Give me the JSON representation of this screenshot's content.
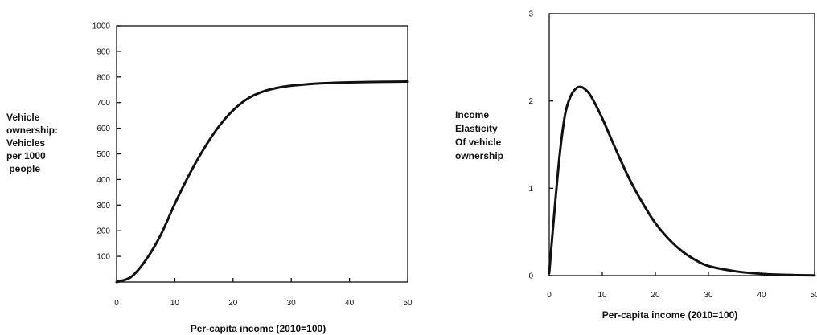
{
  "chart_data": [
    {
      "type": "line",
      "title": "",
      "xlabel": "Per-capita income (2010=100)",
      "ylabel_lines": [
        "Vehicle",
        "ownership:",
        "Vehicles",
        "per 1000",
        " people"
      ],
      "xlim": [
        0,
        50
      ],
      "ylim": [
        0,
        1000
      ],
      "x_ticks": [
        "0",
        "10",
        "20",
        "30",
        "40",
        "50"
      ],
      "y_ticks": [
        "100",
        "200",
        "300",
        "400",
        "500",
        "600",
        "700",
        "800",
        "900",
        "1000"
      ],
      "grid": false,
      "legend": "none",
      "series": [
        {
          "x": [
            0,
            2.5,
            5,
            7.5,
            10,
            12.5,
            15,
            17.5,
            20,
            22.5,
            25,
            27.5,
            30,
            35,
            40,
            45,
            50
          ],
          "y": [
            0,
            20,
            85,
            180,
            305,
            420,
            520,
            605,
            670,
            715,
            742,
            757,
            766,
            775,
            779,
            781,
            782
          ]
        }
      ]
    },
    {
      "type": "line",
      "title": "",
      "xlabel": "Per-capita income (2010=100)",
      "ylabel_lines": [
        "Income",
        "Elasticity",
        "Of vehicle",
        "ownership"
      ],
      "xlim": [
        0,
        50
      ],
      "ylim": [
        0,
        3
      ],
      "x_ticks": [
        "0",
        "10",
        "20",
        "30",
        "40",
        "50"
      ],
      "y_ticks": [
        "0",
        "1",
        "2",
        "3"
      ],
      "grid": false,
      "legend": "none",
      "series": [
        {
          "x": [
            0,
            1,
            2,
            3,
            4,
            5,
            6,
            7,
            8,
            10,
            12.5,
            15,
            17.5,
            20,
            22.5,
            25,
            27.5,
            30,
            35,
            40,
            45,
            50
          ],
          "y": [
            0.03,
            0.75,
            1.4,
            1.85,
            2.05,
            2.14,
            2.16,
            2.12,
            2.04,
            1.8,
            1.45,
            1.12,
            0.84,
            0.6,
            0.42,
            0.28,
            0.18,
            0.11,
            0.05,
            0.02,
            0.008,
            0.002
          ]
        }
      ]
    }
  ]
}
